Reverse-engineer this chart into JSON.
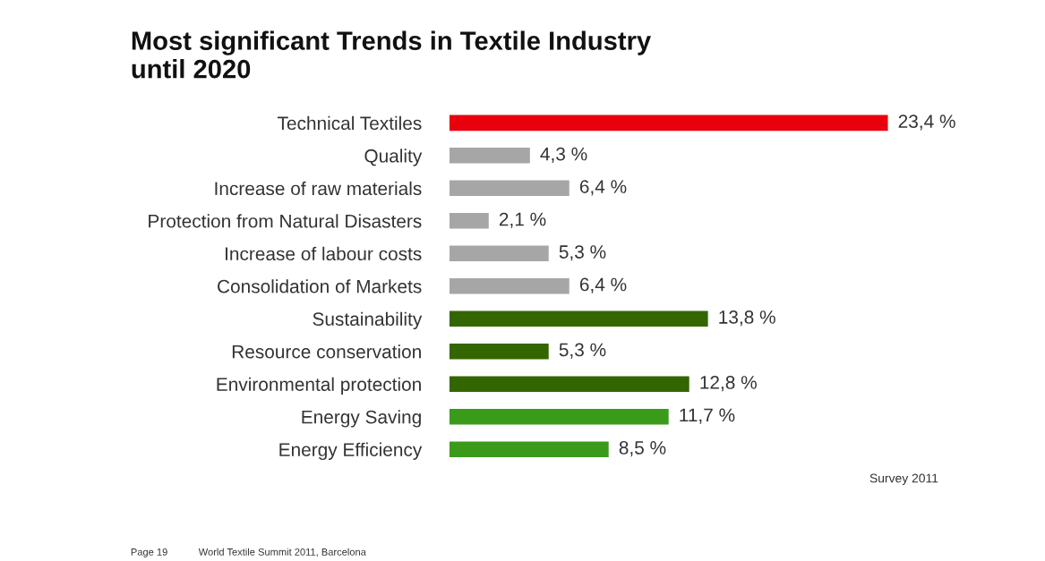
{
  "chart_data": {
    "type": "bar",
    "orientation": "horizontal",
    "title": "Most significant Trends in Textile Industry\nuntil 2020",
    "categories": [
      "Technical Textiles",
      "Quality",
      "Increase of raw materials",
      "Protection from Natural Disasters",
      "Increase of labour costs",
      "Consolidation of Markets",
      "Sustainability",
      "Resource conservation",
      "Environmental protection",
      "Energy Saving",
      "Energy Efficiency"
    ],
    "values": [
      23.4,
      4.3,
      6.4,
      2.1,
      5.3,
      6.4,
      13.8,
      5.3,
      12.8,
      11.7,
      8.5
    ],
    "value_labels": [
      "23,4 %",
      "4,3 %",
      "6,4 %",
      "2,1 %",
      "5,3 %",
      "6,4 %",
      "13,8 %",
      "5,3 %",
      "12,8 %",
      "11,7 %",
      "8,5 %"
    ],
    "colors": [
      "#e8000d",
      "#a6a6a6",
      "#a6a6a6",
      "#a6a6a6",
      "#a6a6a6",
      "#a6a6a6",
      "#336600",
      "#336600",
      "#336600",
      "#3a9a1a",
      "#3a9a1a"
    ],
    "annotations": [
      "Survey 2011",
      "Page 19",
      "World Textile Summit 2011, Barcelona"
    ],
    "grid": false,
    "legend": false
  }
}
